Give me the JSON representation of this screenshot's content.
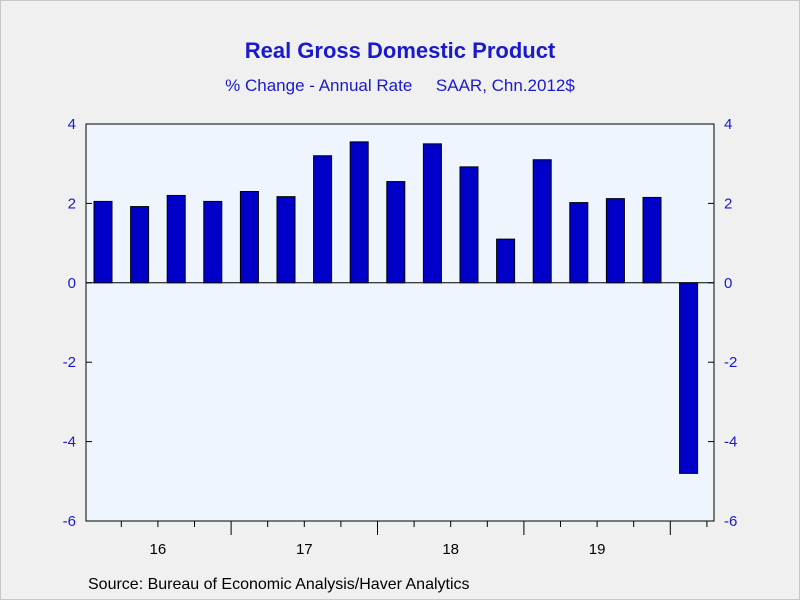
{
  "chart_data": {
    "type": "bar",
    "title": "Real Gross Domestic Product",
    "subtitle": "% Change - Annual Rate     SAAR, Chn.2012$",
    "xlabel": "",
    "ylabel": "",
    "ylim": [
      -6,
      4
    ],
    "yticks": [
      4,
      2,
      0,
      -2,
      -4,
      -6
    ],
    "year_labels": [
      "16",
      "17",
      "18",
      "19"
    ],
    "values": [
      2.05,
      1.92,
      2.2,
      2.05,
      2.3,
      2.17,
      3.2,
      3.55,
      2.55,
      3.5,
      2.92,
      1.1,
      3.1,
      2.02,
      2.12,
      2.15,
      -4.8
    ],
    "grid": false,
    "bar_color": "#0000c8",
    "plot_bg": "#eef5fd",
    "text_color": "#1a1acc"
  },
  "source": "Source:  Bureau of Economic Analysis/Haver Analytics"
}
